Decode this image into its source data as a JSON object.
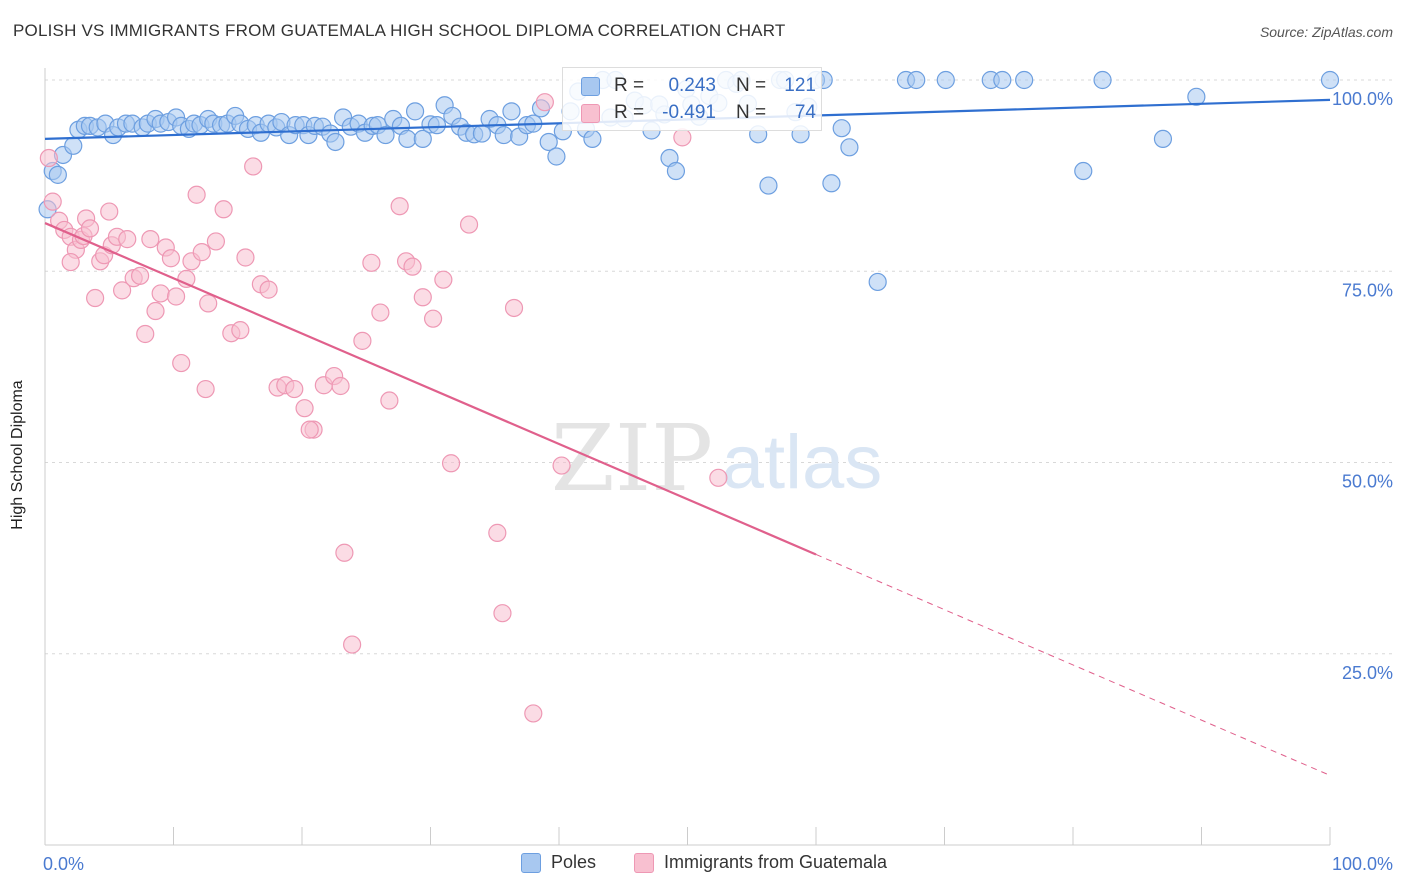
{
  "title": "POLISH VS IMMIGRANTS FROM GUATEMALA HIGH SCHOOL DIPLOMA CORRELATION CHART",
  "source": "Source: ZipAtlas.com",
  "watermark": {
    "zip": "ZIP",
    "atlas": "atlas"
  },
  "colors": {
    "blue_fill": "#a8c8f0",
    "blue_stroke": "#6d9fe0",
    "blue_line": "#2f6fd0",
    "pink_fill": "#f8c0d0",
    "pink_stroke": "#ee98b4",
    "pink_line": "#e0608c",
    "axis_label": "#4a7ad0",
    "grid": "#d8d8d8"
  },
  "stats_legend": [
    {
      "r_label": "R =",
      "r_value": "0.243",
      "n_label": "N =",
      "n_value": "121"
    },
    {
      "r_label": "R =",
      "r_value": "-0.491",
      "n_label": "N =",
      "n_value": "74"
    }
  ],
  "chart_data": {
    "type": "scatter",
    "xlabel": "",
    "ylabel": "High School Diploma",
    "xlim": [
      0,
      100
    ],
    "ylim": [
      0,
      100
    ],
    "x_tick_labels": [
      {
        "value": 0,
        "label": "0.0%"
      },
      {
        "value": 100,
        "label": "100.0%"
      }
    ],
    "x_minor_ticks": [
      10,
      20,
      30,
      40,
      50,
      60,
      70,
      80,
      90
    ],
    "y_tick_labels": [
      {
        "value": 100,
        "label": "100.0%"
      },
      {
        "value": 75,
        "label": "75.0%"
      },
      {
        "value": 50,
        "label": "50.0%"
      },
      {
        "value": 25,
        "label": "25.0%"
      }
    ],
    "grid": true,
    "legend_position": "bottom",
    "series": [
      {
        "name": "Poles",
        "color": "#a8c8f0",
        "trend": {
          "x": [
            0,
            100
          ],
          "y": [
            92.3,
            97.4
          ],
          "dashed_from": null
        },
        "points": [
          [
            0.2,
            83.1
          ],
          [
            0.6,
            88.1
          ],
          [
            1.0,
            87.6
          ],
          [
            1.4,
            90.2
          ],
          [
            2.2,
            91.4
          ],
          [
            2.6,
            93.5
          ],
          [
            3.1,
            94.0
          ],
          [
            3.5,
            94.0
          ],
          [
            4.1,
            93.8
          ],
          [
            4.7,
            94.3
          ],
          [
            5.3,
            92.8
          ],
          [
            5.7,
            93.8
          ],
          [
            6.3,
            94.3
          ],
          [
            6.8,
            94.3
          ],
          [
            7.6,
            93.8
          ],
          [
            8.0,
            94.3
          ],
          [
            8.6,
            94.9
          ],
          [
            9.0,
            94.3
          ],
          [
            9.6,
            94.5
          ],
          [
            10.2,
            95.1
          ],
          [
            10.6,
            94.0
          ],
          [
            11.2,
            93.6
          ],
          [
            11.6,
            94.3
          ],
          [
            12.1,
            94.1
          ],
          [
            12.7,
            94.9
          ],
          [
            13.1,
            94.3
          ],
          [
            13.7,
            94.1
          ],
          [
            14.2,
            94.3
          ],
          [
            14.8,
            95.3
          ],
          [
            15.2,
            94.3
          ],
          [
            15.8,
            93.6
          ],
          [
            16.4,
            94.1
          ],
          [
            16.8,
            93.1
          ],
          [
            17.4,
            94.3
          ],
          [
            18.0,
            93.8
          ],
          [
            18.4,
            94.5
          ],
          [
            19.0,
            92.8
          ],
          [
            19.5,
            94.1
          ],
          [
            20.1,
            94.1
          ],
          [
            20.5,
            92.8
          ],
          [
            21.0,
            94.0
          ],
          [
            21.6,
            93.9
          ],
          [
            22.2,
            93.0
          ],
          [
            22.6,
            91.9
          ],
          [
            23.2,
            95.1
          ],
          [
            23.8,
            93.9
          ],
          [
            24.4,
            94.3
          ],
          [
            24.9,
            93.1
          ],
          [
            25.5,
            94.0
          ],
          [
            25.9,
            94.1
          ],
          [
            26.5,
            92.8
          ],
          [
            27.1,
            94.9
          ],
          [
            27.7,
            94.0
          ],
          [
            28.2,
            92.3
          ],
          [
            28.8,
            95.9
          ],
          [
            29.4,
            92.3
          ],
          [
            30.0,
            94.2
          ],
          [
            30.5,
            94.1
          ],
          [
            31.1,
            96.7
          ],
          [
            31.7,
            95.3
          ],
          [
            32.3,
            93.9
          ],
          [
            32.8,
            93.1
          ],
          [
            33.4,
            92.9
          ],
          [
            34.0,
            93.0
          ],
          [
            34.6,
            94.9
          ],
          [
            35.2,
            94.1
          ],
          [
            35.7,
            92.8
          ],
          [
            36.3,
            95.9
          ],
          [
            36.9,
            92.6
          ],
          [
            37.5,
            94.1
          ],
          [
            38.0,
            94.3
          ],
          [
            38.6,
            96.3
          ],
          [
            39.2,
            91.9
          ],
          [
            39.8,
            90.0
          ],
          [
            40.3,
            93.3
          ],
          [
            40.9,
            95.9
          ],
          [
            41.5,
            98.5
          ],
          [
            42.1,
            93.6
          ],
          [
            42.6,
            92.3
          ],
          [
            43.4,
            100.0
          ],
          [
            44.0,
            95.1
          ],
          [
            44.4,
            100.0
          ],
          [
            45.1,
            95.0
          ],
          [
            45.9,
            97.3
          ],
          [
            46.6,
            96.7
          ],
          [
            47.2,
            93.4
          ],
          [
            47.8,
            96.8
          ],
          [
            48.2,
            95.5
          ],
          [
            48.6,
            89.8
          ],
          [
            49.1,
            88.1
          ],
          [
            49.9,
            98.8
          ],
          [
            50.3,
            96.8
          ],
          [
            50.9,
            95.2
          ],
          [
            51.7,
            97.9
          ],
          [
            52.4,
            97.0
          ],
          [
            53.0,
            100.0
          ],
          [
            53.8,
            99.5
          ],
          [
            54.2,
            100.0
          ],
          [
            54.7,
            96.9
          ],
          [
            55.5,
            92.9
          ],
          [
            56.3,
            86.2
          ],
          [
            57.2,
            100.0
          ],
          [
            57.6,
            100.0
          ],
          [
            58.4,
            95.8
          ],
          [
            58.8,
            92.9
          ],
          [
            59.4,
            96.5
          ],
          [
            60.0,
            100.0
          ],
          [
            60.6,
            100.0
          ],
          [
            61.2,
            86.5
          ],
          [
            62.0,
            93.7
          ],
          [
            62.6,
            91.2
          ],
          [
            64.8,
            73.6
          ],
          [
            67.0,
            100.0
          ],
          [
            67.8,
            100.0
          ],
          [
            70.1,
            100.0
          ],
          [
            73.6,
            100.0
          ],
          [
            74.5,
            100.0
          ],
          [
            76.2,
            100.0
          ],
          [
            80.8,
            88.1
          ],
          [
            82.3,
            100.0
          ],
          [
            87.0,
            92.3
          ],
          [
            89.6,
            97.8
          ],
          [
            100.0,
            100.0
          ]
        ]
      },
      {
        "name": "Immigrants from Guatemala",
        "color": "#f8c0d0",
        "trend": {
          "x": [
            0,
            100
          ],
          "y": [
            81.3,
            9.1
          ],
          "dashed_from": 60
        },
        "points": [
          [
            0.3,
            89.8
          ],
          [
            0.6,
            84.1
          ],
          [
            1.1,
            81.6
          ],
          [
            1.5,
            80.4
          ],
          [
            2.0,
            79.5
          ],
          [
            2.4,
            77.8
          ],
          [
            2.8,
            79.1
          ],
          [
            3.0,
            79.6
          ],
          [
            3.2,
            81.9
          ],
          [
            3.5,
            80.6
          ],
          [
            3.9,
            71.5
          ],
          [
            4.3,
            76.3
          ],
          [
            4.6,
            77.1
          ],
          [
            5.0,
            82.8
          ],
          [
            5.2,
            78.4
          ],
          [
            5.6,
            79.5
          ],
          [
            6.0,
            72.5
          ],
          [
            6.4,
            79.2
          ],
          [
            6.9,
            74.1
          ],
          [
            7.4,
            74.4
          ],
          [
            7.8,
            66.8
          ],
          [
            8.2,
            79.2
          ],
          [
            8.6,
            69.8
          ],
          [
            9.0,
            72.1
          ],
          [
            9.4,
            78.1
          ],
          [
            9.8,
            76.7
          ],
          [
            10.2,
            71.7
          ],
          [
            10.6,
            63.0
          ],
          [
            11.0,
            74.0
          ],
          [
            11.4,
            76.3
          ],
          [
            11.8,
            85.0
          ],
          [
            12.2,
            77.5
          ],
          [
            12.7,
            70.8
          ],
          [
            13.3,
            78.9
          ],
          [
            13.9,
            83.1
          ],
          [
            14.5,
            66.9
          ],
          [
            15.2,
            67.3
          ],
          [
            15.6,
            76.8
          ],
          [
            16.2,
            88.7
          ],
          [
            16.8,
            73.3
          ],
          [
            17.4,
            72.6
          ],
          [
            18.1,
            59.8
          ],
          [
            18.7,
            60.1
          ],
          [
            19.4,
            59.6
          ],
          [
            20.2,
            57.1
          ],
          [
            20.9,
            54.3
          ],
          [
            21.7,
            60.1
          ],
          [
            22.5,
            61.3
          ],
          [
            23.3,
            38.2
          ],
          [
            23.9,
            26.2
          ],
          [
            24.7,
            65.9
          ],
          [
            25.4,
            76.1
          ],
          [
            26.1,
            69.6
          ],
          [
            26.8,
            58.1
          ],
          [
            27.6,
            83.5
          ],
          [
            28.1,
            76.3
          ],
          [
            28.6,
            75.6
          ],
          [
            29.4,
            71.6
          ],
          [
            30.2,
            68.8
          ],
          [
            31.0,
            73.9
          ],
          [
            31.6,
            49.9
          ],
          [
            33.0,
            81.1
          ],
          [
            35.2,
            40.8
          ],
          [
            35.6,
            30.3
          ],
          [
            36.5,
            70.2
          ],
          [
            38.0,
            17.2
          ],
          [
            38.9,
            97.1
          ],
          [
            40.2,
            49.6
          ],
          [
            49.6,
            92.5
          ],
          [
            52.4,
            48.0
          ],
          [
            2.0,
            76.2
          ],
          [
            12.5,
            59.6
          ],
          [
            20.6,
            54.3
          ],
          [
            23.0,
            60.0
          ]
        ]
      }
    ]
  },
  "legend": [
    {
      "label": "Poles"
    },
    {
      "label": "Immigrants from Guatemala"
    }
  ]
}
